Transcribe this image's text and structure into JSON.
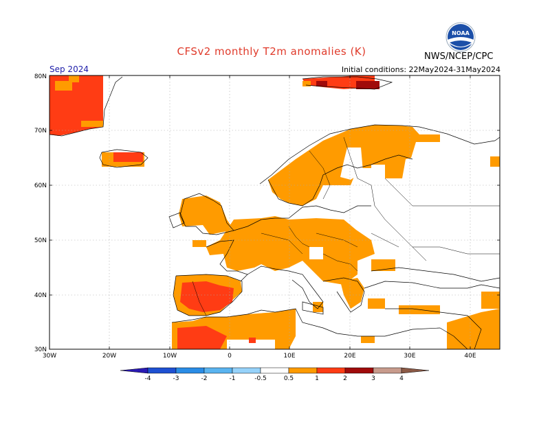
{
  "title": "CFSv2 monthly T2m anomalies (K)",
  "period": "Sep 2024",
  "initial_conditions": "Initial conditions: 22May2024-31May2024",
  "agency": "NWS/NCEP/CPC",
  "logo_text": "NOAA",
  "lat_labels": [
    "80N",
    "70N",
    "60N",
    "50N",
    "40N",
    "30N"
  ],
  "lon_labels": [
    "30W",
    "20W",
    "10W",
    "0",
    "10E",
    "20E",
    "30E",
    "40E"
  ],
  "colorbar": {
    "labels": [
      "-4",
      "-3",
      "-2",
      "-1",
      "-0.5",
      "0.5",
      "1",
      "2",
      "3",
      "4"
    ],
    "colors": [
      "#2a1ab4",
      "#1e50d2",
      "#2a8ce6",
      "#5ab4f0",
      "#96d2fa",
      "#ffffff",
      "#ff9b00",
      "#ff3c14",
      "#a00a0a",
      "#c89b8c",
      "#8c5a46"
    ]
  },
  "legend_colors": {
    "anom_0.5_1": "#ff9b00",
    "anom_1_2": "#ff3c14",
    "anom_2_3": "#a00a0a"
  }
}
